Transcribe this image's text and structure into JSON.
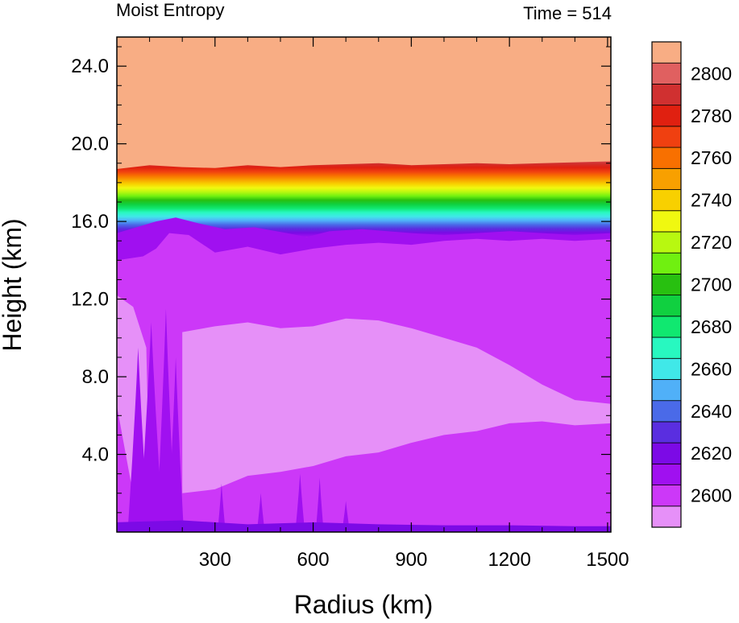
{
  "chart_data": {
    "type": "heatmap",
    "title_left": "Moist Entropy",
    "title_right": "Time = 514",
    "xlabel": "Radius (km)",
    "ylabel": "Height (km)",
    "xlim": [
      0,
      1510
    ],
    "ylim": [
      0,
      25.5
    ],
    "xticks": [
      300,
      600,
      900,
      1200,
      1500
    ],
    "xtick_labels": [
      "300",
      "600",
      "900",
      "1200",
      "1500"
    ],
    "yticks": [
      4,
      8,
      12,
      16,
      20,
      24
    ],
    "ytick_labels": [
      "4.0",
      "8.0",
      "12.0",
      "16.0",
      "20.0",
      "24.0"
    ],
    "colorbar": {
      "labels": [
        "2600",
        "2620",
        "2640",
        "2660",
        "2680",
        "2700",
        "2720",
        "2740",
        "2760",
        "2780",
        "2800"
      ],
      "levels": [
        2600,
        2610,
        2620,
        2630,
        2640,
        2650,
        2660,
        2670,
        2680,
        2690,
        2700,
        2710,
        2720,
        2730,
        2740,
        2750,
        2760,
        2770,
        2780,
        2790,
        2800
      ],
      "colors": [
        "#e690f8",
        "#cc38f8",
        "#a010f0",
        "#7c0ae6",
        "#5a2ee0",
        "#4a6ae8",
        "#50b0f8",
        "#40e8e8",
        "#28f8c0",
        "#10e870",
        "#10d040",
        "#28c010",
        "#70f010",
        "#b8f810",
        "#f0f810",
        "#f8d000",
        "#f8a000",
        "#f87000",
        "#f04010",
        "#e02010",
        "#d03030",
        "#e06060",
        "#f8ad84"
      ]
    },
    "contours": {
      "upper_shelf": [
        [
          0,
          18.7
        ],
        [
          100,
          18.9
        ],
        [
          200,
          18.8
        ],
        [
          300,
          18.75
        ],
        [
          400,
          18.9
        ],
        [
          500,
          18.8
        ],
        [
          600,
          18.9
        ],
        [
          700,
          18.95
        ],
        [
          800,
          19.0
        ],
        [
          900,
          18.9
        ],
        [
          1000,
          18.95
        ],
        [
          1100,
          19.0
        ],
        [
          1200,
          18.95
        ],
        [
          1300,
          19.0
        ],
        [
          1400,
          19.05
        ],
        [
          1510,
          19.1
        ]
      ],
      "tropopause_bottom": [
        [
          0,
          15.4
        ],
        [
          60,
          15.7
        ],
        [
          120,
          16.0
        ],
        [
          180,
          16.2
        ],
        [
          250,
          15.9
        ],
        [
          330,
          15.6
        ],
        [
          420,
          15.7
        ],
        [
          520,
          15.4
        ],
        [
          580,
          15.2
        ],
        [
          650,
          15.5
        ],
        [
          750,
          15.6
        ],
        [
          900,
          15.4
        ],
        [
          1000,
          15.3
        ],
        [
          1100,
          15.4
        ],
        [
          1200,
          15.5
        ],
        [
          1300,
          15.4
        ],
        [
          1400,
          15.3
        ],
        [
          1510,
          15.4
        ]
      ],
      "mid_level_top": [
        [
          0,
          14.0
        ],
        [
          80,
          14.2
        ],
        [
          120,
          14.6
        ],
        [
          160,
          15.4
        ],
        [
          220,
          15.3
        ],
        [
          300,
          14.4
        ],
        [
          400,
          14.7
        ],
        [
          500,
          14.3
        ],
        [
          600,
          14.6
        ],
        [
          700,
          14.8
        ],
        [
          800,
          14.9
        ],
        [
          900,
          14.8
        ],
        [
          1000,
          15.0
        ],
        [
          1100,
          15.1
        ],
        [
          1200,
          15.0
        ],
        [
          1300,
          15.1
        ],
        [
          1400,
          15.0
        ],
        [
          1510,
          15.1
        ]
      ],
      "upper_light_region": [
        [
          200,
          10.3
        ],
        [
          300,
          10.6
        ],
        [
          400,
          10.8
        ],
        [
          500,
          10.5
        ],
        [
          600,
          10.6
        ],
        [
          700,
          11.0
        ],
        [
          800,
          10.9
        ],
        [
          900,
          10.5
        ],
        [
          1000,
          10.0
        ],
        [
          1100,
          9.5
        ],
        [
          1200,
          8.6
        ],
        [
          1300,
          7.6
        ],
        [
          1400,
          6.8
        ],
        [
          1510,
          6.6
        ]
      ],
      "lower_light_region": [
        [
          1510,
          5.6
        ],
        [
          1400,
          5.5
        ],
        [
          1300,
          5.7
        ],
        [
          1200,
          5.6
        ],
        [
          1100,
          5.2
        ],
        [
          1000,
          5.0
        ],
        [
          900,
          4.6
        ],
        [
          800,
          4.1
        ],
        [
          700,
          3.9
        ],
        [
          600,
          3.4
        ],
        [
          500,
          3.1
        ],
        [
          400,
          2.9
        ],
        [
          300,
          2.2
        ],
        [
          200,
          2.0
        ]
      ],
      "surface_band": [
        [
          0,
          0.5
        ],
        [
          200,
          0.6
        ],
        [
          400,
          0.4
        ],
        [
          600,
          0.5
        ],
        [
          800,
          0.4
        ],
        [
          1000,
          0.35
        ],
        [
          1200,
          0.35
        ],
        [
          1400,
          0.3
        ],
        [
          1510,
          0.3
        ]
      ]
    }
  }
}
